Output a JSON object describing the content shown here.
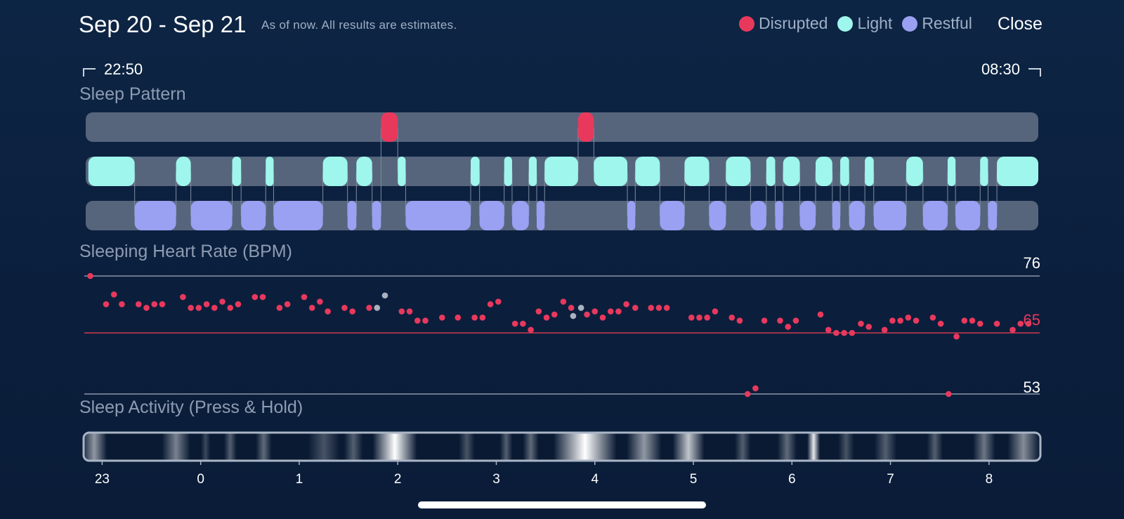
{
  "header": {
    "title": "Sep 20 - Sep 21",
    "subtitle": "As of now. All results are estimates.",
    "close_label": "Close"
  },
  "legend": [
    {
      "label": "Disrupted",
      "color": "#e8395d"
    },
    {
      "label": "Light",
      "color": "#9ff6ec"
    },
    {
      "label": "Restful",
      "color": "#9aa0f2"
    }
  ],
  "timerange": {
    "start": "22:50",
    "end": "08:30"
  },
  "sleep_pattern": {
    "title": "Sleep Pattern",
    "time_start_hours": -1.1667,
    "time_end_hours": 8.5,
    "colors": {
      "track": "#56657c",
      "disrupted": "#e8395d",
      "light": "#9ff6ec",
      "restful": "#9aa0f2"
    },
    "segments": [
      {
        "stage": "light",
        "start": -1.14,
        "end": -0.67
      },
      {
        "stage": "restful",
        "start": -0.67,
        "end": -0.25
      },
      {
        "stage": "light",
        "start": -0.25,
        "end": -0.1
      },
      {
        "stage": "restful",
        "start": -0.1,
        "end": 0.32
      },
      {
        "stage": "light",
        "start": 0.32,
        "end": 0.41
      },
      {
        "stage": "restful",
        "start": 0.41,
        "end": 0.66
      },
      {
        "stage": "light",
        "start": 0.66,
        "end": 0.74
      },
      {
        "stage": "restful",
        "start": 0.74,
        "end": 1.24
      },
      {
        "stage": "light",
        "start": 1.24,
        "end": 1.49
      },
      {
        "stage": "restful",
        "start": 1.49,
        "end": 1.58
      },
      {
        "stage": "light",
        "start": 1.58,
        "end": 1.74
      },
      {
        "stage": "restful",
        "start": 1.74,
        "end": 1.83
      },
      {
        "stage": "disrupted",
        "start": 1.83,
        "end": 2.0
      },
      {
        "stage": "light",
        "start": 2.0,
        "end": 2.08
      },
      {
        "stage": "restful",
        "start": 2.08,
        "end": 2.74
      },
      {
        "stage": "light",
        "start": 2.74,
        "end": 2.83
      },
      {
        "stage": "restful",
        "start": 2.83,
        "end": 3.08
      },
      {
        "stage": "light",
        "start": 3.08,
        "end": 3.16
      },
      {
        "stage": "restful",
        "start": 3.16,
        "end": 3.33
      },
      {
        "stage": "light",
        "start": 3.33,
        "end": 3.41
      },
      {
        "stage": "restful",
        "start": 3.41,
        "end": 3.49
      },
      {
        "stage": "light",
        "start": 3.49,
        "end": 3.83
      },
      {
        "stage": "disrupted",
        "start": 3.83,
        "end": 3.99
      },
      {
        "stage": "light",
        "start": 3.99,
        "end": 4.33
      },
      {
        "stage": "restful",
        "start": 4.33,
        "end": 4.41
      },
      {
        "stage": "light",
        "start": 4.41,
        "end": 4.66
      },
      {
        "stage": "restful",
        "start": 4.66,
        "end": 4.91
      },
      {
        "stage": "light",
        "start": 4.91,
        "end": 5.16
      },
      {
        "stage": "restful",
        "start": 5.16,
        "end": 5.33
      },
      {
        "stage": "light",
        "start": 5.33,
        "end": 5.58
      },
      {
        "stage": "restful",
        "start": 5.58,
        "end": 5.74
      },
      {
        "stage": "light",
        "start": 5.74,
        "end": 5.83
      },
      {
        "stage": "restful",
        "start": 5.83,
        "end": 5.91
      },
      {
        "stage": "light",
        "start": 5.91,
        "end": 6.08
      },
      {
        "stage": "restful",
        "start": 6.08,
        "end": 6.24
      },
      {
        "stage": "light",
        "start": 6.24,
        "end": 6.41
      },
      {
        "stage": "restful",
        "start": 6.41,
        "end": 6.49
      },
      {
        "stage": "light",
        "start": 6.49,
        "end": 6.58
      },
      {
        "stage": "restful",
        "start": 6.58,
        "end": 6.74
      },
      {
        "stage": "light",
        "start": 6.74,
        "end": 6.83
      },
      {
        "stage": "restful",
        "start": 6.83,
        "end": 7.16
      },
      {
        "stage": "light",
        "start": 7.16,
        "end": 7.33
      },
      {
        "stage": "restful",
        "start": 7.33,
        "end": 7.58
      },
      {
        "stage": "light",
        "start": 7.58,
        "end": 7.66
      },
      {
        "stage": "restful",
        "start": 7.66,
        "end": 7.91
      },
      {
        "stage": "light",
        "start": 7.91,
        "end": 7.99
      },
      {
        "stage": "restful",
        "start": 7.99,
        "end": 8.08
      },
      {
        "stage": "light",
        "start": 8.08,
        "end": 8.5
      }
    ]
  },
  "heart_rate": {
    "title": "Sleeping Heart Rate (BPM)",
    "max_label": "76",
    "avg_label": "65",
    "min_label": "53",
    "y_range": [
      53,
      76
    ],
    "avg_value": 65,
    "colors": {
      "point": "#e8395d",
      "missing": "#a9b2bf",
      "avg_line": "#d3394f",
      "bound_line": "#8a96a8",
      "avg_label": "#e8395d"
    },
    "points": [
      [
        -1.12,
        76
      ],
      [
        -0.96,
        70.5
      ],
      [
        -0.88,
        72.4
      ],
      [
        -0.8,
        70.5
      ],
      [
        -0.63,
        70.5
      ],
      [
        -0.55,
        69.8
      ],
      [
        -0.47,
        70.5
      ],
      [
        -0.39,
        70.5
      ],
      [
        -0.18,
        71.9
      ],
      [
        -0.1,
        69.8
      ],
      [
        -0.02,
        69.8
      ],
      [
        0.06,
        70.5
      ],
      [
        0.14,
        69.8
      ],
      [
        0.22,
        71
      ],
      [
        0.3,
        69.8
      ],
      [
        0.38,
        70.5
      ],
      [
        0.55,
        71.9
      ],
      [
        0.63,
        71.9
      ],
      [
        0.8,
        69.8
      ],
      [
        0.88,
        70.5
      ],
      [
        1.05,
        71.9
      ],
      [
        1.13,
        69.8
      ],
      [
        1.21,
        71
      ],
      [
        1.29,
        69.1
      ],
      [
        1.46,
        69.8
      ],
      [
        1.54,
        69.1
      ],
      [
        1.71,
        69.8
      ],
      [
        1.79,
        69.8
      ],
      [
        2.04,
        69.1
      ],
      [
        2.12,
        69.1
      ],
      [
        2.2,
        67.3
      ],
      [
        2.28,
        67.3
      ],
      [
        2.45,
        67.9
      ],
      [
        2.61,
        67.9
      ],
      [
        2.78,
        67.9
      ],
      [
        2.86,
        67.9
      ],
      [
        2.94,
        70.5
      ],
      [
        3.02,
        71
      ],
      [
        3.19,
        66.7
      ],
      [
        3.27,
        66.7
      ],
      [
        3.35,
        65.5
      ],
      [
        3.43,
        69.1
      ],
      [
        3.51,
        67.9
      ],
      [
        3.59,
        68.5
      ],
      [
        3.68,
        71
      ],
      [
        3.76,
        69.8
      ],
      [
        3.92,
        68.5
      ],
      [
        4.0,
        69.1
      ],
      [
        4.08,
        67.9
      ],
      [
        4.16,
        69.1
      ],
      [
        4.24,
        69.1
      ],
      [
        4.32,
        70.5
      ],
      [
        4.41,
        69.8
      ],
      [
        4.57,
        69.8
      ],
      [
        4.65,
        69.8
      ],
      [
        4.73,
        69.8
      ],
      [
        4.98,
        67.9
      ],
      [
        5.06,
        67.9
      ],
      [
        5.14,
        67.9
      ],
      [
        5.22,
        69.1
      ],
      [
        5.39,
        67.9
      ],
      [
        5.47,
        67.3
      ],
      [
        5.55,
        53
      ],
      [
        5.63,
        54.1
      ],
      [
        5.72,
        67.3
      ],
      [
        5.88,
        67.3
      ],
      [
        5.96,
        66.1
      ],
      [
        6.04,
        67.3
      ],
      [
        6.29,
        68.5
      ],
      [
        6.37,
        65.5
      ],
      [
        6.45,
        64.9
      ],
      [
        6.53,
        64.9
      ],
      [
        6.61,
        64.9
      ],
      [
        6.7,
        66.7
      ],
      [
        6.78,
        66.1
      ],
      [
        6.94,
        65.5
      ],
      [
        7.02,
        67.3
      ],
      [
        7.1,
        67.3
      ],
      [
        7.18,
        67.9
      ],
      [
        7.26,
        67.3
      ],
      [
        7.43,
        67.9
      ],
      [
        7.51,
        66.7
      ],
      [
        7.59,
        53
      ],
      [
        7.67,
        64.2
      ],
      [
        7.75,
        67.3
      ],
      [
        7.83,
        67.3
      ],
      [
        7.91,
        66.7
      ],
      [
        8.08,
        66.7
      ],
      [
        8.24,
        65.5
      ],
      [
        8.32,
        66.7
      ],
      [
        8.4,
        66.7
      ]
    ],
    "missing_points": [
      [
        1.87,
        72.2
      ],
      [
        1.79,
        69.8
      ],
      [
        3.86,
        69.8
      ],
      [
        3.78,
        68.2
      ]
    ]
  },
  "sleep_activity": {
    "title": "Sleep Activity (Press & Hold)",
    "axis_labels": [
      "23",
      "0",
      "1",
      "2",
      "3",
      "4",
      "5",
      "6",
      "7",
      "8"
    ],
    "axis_hours": [
      -1,
      0,
      1,
      2,
      3,
      4,
      5,
      6,
      7,
      8
    ],
    "bands": [
      {
        "center": -1.08,
        "width": 0.16,
        "intensity": 0.55
      },
      {
        "center": -0.25,
        "width": 0.18,
        "intensity": 0.45
      },
      {
        "center": 0.05,
        "width": 0.06,
        "intensity": 0.2
      },
      {
        "center": 0.3,
        "width": 0.08,
        "intensity": 0.3
      },
      {
        "center": 0.64,
        "width": 0.1,
        "intensity": 0.35
      },
      {
        "center": 1.25,
        "width": 0.2,
        "intensity": 0.25
      },
      {
        "center": 1.55,
        "width": 0.12,
        "intensity": 0.3
      },
      {
        "center": 1.97,
        "width": 0.28,
        "intensity": 1.0
      },
      {
        "center": 2.7,
        "width": 0.1,
        "intensity": 0.25
      },
      {
        "center": 3.1,
        "width": 0.08,
        "intensity": 0.3
      },
      {
        "center": 3.35,
        "width": 0.1,
        "intensity": 0.35
      },
      {
        "center": 3.9,
        "width": 0.4,
        "intensity": 1.0
      },
      {
        "center": 4.5,
        "width": 0.22,
        "intensity": 0.55
      },
      {
        "center": 4.95,
        "width": 0.2,
        "intensity": 0.75
      },
      {
        "center": 5.5,
        "width": 0.1,
        "intensity": 0.3
      },
      {
        "center": 5.95,
        "width": 0.12,
        "intensity": 0.35
      },
      {
        "center": 6.22,
        "width": 0.08,
        "intensity": 0.9
      },
      {
        "center": 6.55,
        "width": 0.1,
        "intensity": 0.25
      },
      {
        "center": 6.95,
        "width": 0.14,
        "intensity": 0.3
      },
      {
        "center": 7.45,
        "width": 0.1,
        "intensity": 0.3
      },
      {
        "center": 7.95,
        "width": 0.14,
        "intensity": 0.4
      },
      {
        "center": 8.35,
        "width": 0.2,
        "intensity": 0.5
      }
    ]
  },
  "home_indicator": {
    "color": "#ffffff"
  }
}
